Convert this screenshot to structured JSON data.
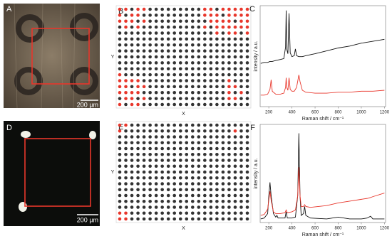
{
  "images": [
    {
      "label": "A",
      "scale_bar": "200 µm"
    },
    {
      "label": "D",
      "scale_bar": "200 µm"
    }
  ],
  "maps": [
    {
      "label": "B",
      "x_label": "X",
      "y_label": "Y",
      "colors": [
        "#333333",
        "#e8362b"
      ],
      "rows": [
        [
          1,
          1,
          0,
          1,
          1,
          0,
          0,
          0,
          0,
          0,
          0,
          0,
          0,
          0,
          1,
          1,
          0,
          1,
          1,
          1,
          1,
          1
        ],
        [
          1,
          0,
          1,
          1,
          0,
          0,
          0,
          0,
          0,
          0,
          0,
          0,
          0,
          0,
          1,
          1,
          1,
          0,
          1,
          1,
          1,
          1
        ],
        [
          1,
          1,
          1,
          0,
          1,
          0,
          0,
          0,
          0,
          0,
          0,
          0,
          0,
          0,
          0,
          1,
          1,
          1,
          1,
          0,
          1,
          1
        ],
        [
          0,
          1,
          0,
          1,
          0,
          0,
          0,
          0,
          0,
          0,
          0,
          0,
          0,
          0,
          1,
          0,
          1,
          1,
          1,
          1,
          1,
          1
        ],
        [
          0,
          0,
          0,
          0,
          0,
          0,
          0,
          0,
          0,
          0,
          0,
          0,
          0,
          0,
          0,
          0,
          1,
          0,
          1,
          1,
          0,
          1
        ],
        [
          0,
          0,
          0,
          0,
          0,
          0,
          0,
          0,
          0,
          0,
          0,
          0,
          0,
          0,
          0,
          0,
          0,
          0,
          0,
          0,
          0,
          0
        ],
        [
          0,
          0,
          0,
          0,
          0,
          0,
          0,
          0,
          0,
          0,
          0,
          0,
          0,
          0,
          0,
          0,
          0,
          0,
          0,
          0,
          0,
          0
        ],
        [
          0,
          0,
          0,
          0,
          0,
          0,
          0,
          0,
          0,
          0,
          0,
          0,
          0,
          0,
          0,
          0,
          0,
          0,
          0,
          0,
          0,
          0
        ],
        [
          0,
          0,
          0,
          0,
          0,
          0,
          0,
          0,
          0,
          0,
          0,
          0,
          0,
          0,
          0,
          0,
          0,
          0,
          0,
          0,
          0,
          0
        ],
        [
          0,
          0,
          0,
          0,
          0,
          0,
          0,
          0,
          0,
          0,
          0,
          0,
          0,
          0,
          0,
          0,
          0,
          0,
          0,
          0,
          0,
          0
        ],
        [
          0,
          0,
          0,
          0,
          0,
          0,
          0,
          0,
          0,
          0,
          0,
          0,
          0,
          0,
          0,
          0,
          0,
          0,
          0,
          0,
          0,
          0
        ],
        [
          1,
          0,
          0,
          0,
          0,
          0,
          0,
          0,
          0,
          0,
          0,
          0,
          0,
          0,
          0,
          0,
          0,
          0,
          0,
          0,
          0,
          0
        ],
        [
          1,
          1,
          1,
          1,
          0,
          0,
          0,
          0,
          0,
          0,
          0,
          0,
          0,
          0,
          0,
          0,
          0,
          0,
          1,
          0,
          0,
          0
        ],
        [
          1,
          1,
          0,
          1,
          1,
          0,
          0,
          0,
          0,
          0,
          0,
          0,
          0,
          0,
          0,
          0,
          0,
          0,
          1,
          1,
          0,
          0
        ],
        [
          1,
          1,
          1,
          1,
          0,
          0,
          0,
          0,
          0,
          0,
          0,
          0,
          0,
          0,
          0,
          0,
          0,
          0,
          1,
          0,
          1,
          0
        ],
        [
          0,
          1,
          1,
          0,
          1,
          0,
          0,
          0,
          0,
          0,
          0,
          0,
          0,
          0,
          0,
          0,
          0,
          0,
          1,
          1,
          0,
          0
        ],
        [
          1,
          0,
          1,
          1,
          0,
          0,
          0,
          0,
          0,
          0,
          0,
          0,
          0,
          0,
          0,
          0,
          0,
          0,
          0,
          0,
          0,
          0
        ]
      ]
    },
    {
      "label": "E",
      "x_label": "X",
      "y_label": "Y",
      "colors": [
        "#333333",
        "#e8362b"
      ],
      "rows": [
        [
          1,
          1,
          0,
          0,
          0,
          0,
          0,
          0,
          0,
          0,
          0,
          0,
          0,
          0,
          0,
          0,
          0,
          0,
          0,
          0,
          0,
          0
        ],
        [
          1,
          0,
          0,
          0,
          0,
          0,
          0,
          0,
          0,
          0,
          0,
          0,
          0,
          0,
          0,
          0,
          0,
          0,
          0,
          1,
          0,
          0
        ],
        [
          0,
          0,
          0,
          0,
          0,
          0,
          0,
          0,
          0,
          0,
          0,
          0,
          0,
          0,
          0,
          0,
          0,
          0,
          0,
          0,
          0,
          0
        ],
        [
          0,
          0,
          0,
          0,
          0,
          0,
          0,
          0,
          0,
          0,
          0,
          0,
          0,
          0,
          0,
          0,
          0,
          0,
          0,
          0,
          0,
          0
        ],
        [
          0,
          0,
          0,
          0,
          0,
          0,
          0,
          0,
          0,
          0,
          0,
          0,
          0,
          0,
          0,
          0,
          0,
          0,
          0,
          0,
          0,
          0
        ],
        [
          0,
          0,
          0,
          0,
          0,
          0,
          0,
          0,
          0,
          0,
          0,
          0,
          0,
          0,
          0,
          0,
          0,
          0,
          0,
          0,
          0,
          0
        ],
        [
          0,
          0,
          0,
          0,
          0,
          0,
          0,
          0,
          0,
          0,
          0,
          0,
          0,
          0,
          0,
          0,
          0,
          0,
          0,
          0,
          0,
          0
        ],
        [
          0,
          0,
          0,
          0,
          0,
          0,
          0,
          0,
          0,
          0,
          0,
          0,
          0,
          0,
          0,
          0,
          0,
          0,
          0,
          0,
          0,
          0
        ],
        [
          0,
          0,
          0,
          0,
          0,
          0,
          0,
          0,
          0,
          0,
          0,
          0,
          0,
          0,
          0,
          0,
          0,
          0,
          0,
          0,
          0,
          0
        ],
        [
          0,
          0,
          0,
          0,
          0,
          0,
          0,
          0,
          0,
          0,
          0,
          0,
          0,
          0,
          0,
          0,
          0,
          0,
          0,
          0,
          0,
          0
        ],
        [
          0,
          0,
          0,
          0,
          0,
          0,
          0,
          0,
          0,
          0,
          0,
          0,
          0,
          0,
          0,
          0,
          0,
          0,
          0,
          0,
          0,
          0
        ],
        [
          0,
          0,
          0,
          0,
          0,
          0,
          0,
          0,
          0,
          0,
          0,
          0,
          0,
          0,
          0,
          0,
          0,
          0,
          0,
          0,
          0,
          0
        ],
        [
          0,
          0,
          0,
          0,
          0,
          0,
          0,
          0,
          0,
          0,
          0,
          0,
          0,
          0,
          0,
          0,
          0,
          0,
          0,
          0,
          0,
          0
        ],
        [
          0,
          0,
          0,
          0,
          0,
          0,
          0,
          0,
          0,
          0,
          0,
          0,
          0,
          0,
          0,
          0,
          0,
          0,
          0,
          0,
          0,
          0
        ],
        [
          0,
          0,
          0,
          0,
          0,
          0,
          0,
          0,
          0,
          0,
          0,
          0,
          0,
          0,
          0,
          0,
          0,
          0,
          0,
          0,
          0,
          0
        ],
        [
          1,
          1,
          0,
          0,
          0,
          0,
          0,
          0,
          0,
          0,
          0,
          0,
          0,
          0,
          0,
          0,
          0,
          0,
          0,
          0,
          0,
          0
        ],
        [
          1,
          1,
          0,
          0,
          0,
          0,
          0,
          0,
          0,
          0,
          0,
          0,
          0,
          0,
          0,
          0,
          0,
          0,
          0,
          0,
          0,
          0
        ]
      ]
    }
  ],
  "chart_data": [
    {
      "type": "line",
      "label": "C",
      "x_label": "Raman shift / cm⁻¹",
      "y_label": "intensity / a.u.",
      "xlim": [
        125,
        1210
      ],
      "ylim": [
        0,
        1.05
      ],
      "xticks": [
        200,
        400,
        600,
        800,
        1000,
        1200
      ],
      "x": [
        130,
        160,
        190,
        210,
        220,
        230,
        260,
        300,
        330,
        345,
        350,
        355,
        365,
        375,
        385,
        400,
        420,
        430,
        440,
        460,
        470,
        490,
        520,
        600,
        700,
        800,
        900,
        1000,
        1100,
        1200
      ],
      "series": [
        {
          "color": "#111111",
          "values": [
            0.45,
            0.46,
            0.46,
            0.47,
            0.47,
            0.47,
            0.48,
            0.49,
            0.5,
            0.62,
            1.0,
            0.6,
            0.55,
            0.97,
            0.56,
            0.52,
            0.53,
            0.6,
            0.53,
            0.52,
            0.52,
            0.52,
            0.53,
            0.55,
            0.58,
            0.61,
            0.63,
            0.66,
            0.68,
            0.7
          ]
        },
        {
          "color": "#e8362b",
          "values": [
            0.12,
            0.12,
            0.13,
            0.18,
            0.28,
            0.16,
            0.13,
            0.13,
            0.14,
            0.2,
            0.3,
            0.2,
            0.17,
            0.3,
            0.18,
            0.16,
            0.16,
            0.18,
            0.2,
            0.33,
            0.26,
            0.17,
            0.15,
            0.14,
            0.14,
            0.15,
            0.15,
            0.16,
            0.16,
            0.17
          ]
        }
      ]
    },
    {
      "type": "line",
      "label": "F",
      "x_label": "Raman shift / cm⁻¹",
      "y_label": "intensity / a.u.",
      "xlim": [
        125,
        1210
      ],
      "ylim": [
        0,
        1.1
      ],
      "xticks": [
        200,
        400,
        600,
        800,
        1000,
        1200
      ],
      "x": [
        130,
        160,
        190,
        200,
        210,
        220,
        240,
        260,
        270,
        280,
        300,
        340,
        350,
        360,
        400,
        430,
        450,
        460,
        470,
        480,
        500,
        510,
        520,
        560,
        700,
        800,
        900,
        1000,
        1050,
        1080,
        1100,
        1200
      ],
      "series": [
        {
          "color": "#111111",
          "values": [
            0.04,
            0.05,
            0.1,
            0.3,
            0.45,
            0.3,
            0.1,
            0.06,
            0.08,
            0.05,
            0.05,
            0.05,
            0.12,
            0.05,
            0.05,
            0.06,
            0.3,
            1.0,
            0.3,
            0.08,
            0.1,
            0.18,
            0.08,
            0.05,
            0.04,
            0.06,
            0.04,
            0.04,
            0.05,
            0.07,
            0.04,
            0.04
          ]
        },
        {
          "color": "#e8362b",
          "values": [
            0.08,
            0.09,
            0.15,
            0.25,
            0.35,
            0.25,
            0.12,
            0.1,
            0.1,
            0.1,
            0.1,
            0.11,
            0.14,
            0.11,
            0.12,
            0.14,
            0.3,
            0.62,
            0.3,
            0.18,
            0.18,
            0.2,
            0.18,
            0.17,
            0.19,
            0.22,
            0.24,
            0.26,
            0.27,
            0.28,
            0.29,
            0.33
          ]
        }
      ]
    }
  ]
}
